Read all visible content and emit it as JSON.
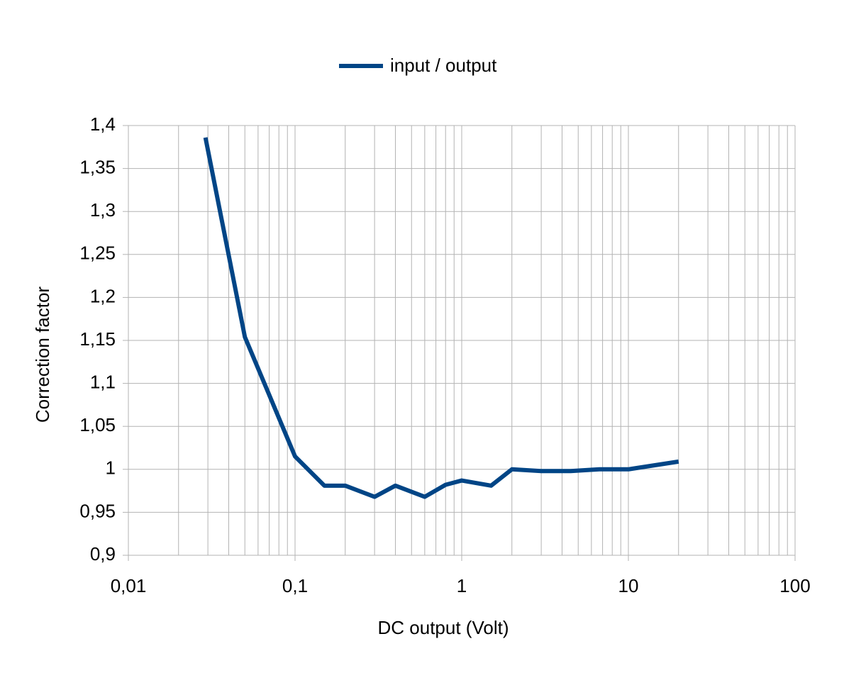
{
  "chart_data": {
    "type": "line",
    "x_label": "DC output (Volt)",
    "y_label": "Correction factor",
    "xscale": "log",
    "grid": true,
    "legend": "top",
    "xlim": [
      0.01,
      100
    ],
    "xticks": [
      {
        "value": 0.01,
        "label": "0,01"
      },
      {
        "value": 0.1,
        "label": "0,1"
      },
      1,
      10,
      100
    ],
    "xminorticks": [
      0.02,
      0.03,
      0.04,
      0.05,
      0.06,
      0.07,
      0.08,
      0.09,
      0.2,
      0.3,
      0.4,
      0.5,
      0.6,
      0.7,
      0.8,
      0.9,
      2,
      3,
      4,
      5,
      6,
      7,
      8,
      9,
      20,
      30,
      40,
      50,
      60,
      70,
      80,
      90
    ],
    "ylim": [
      0.9,
      1.4
    ],
    "yticks": [
      {
        "value": 0.9,
        "label": "0,9"
      },
      {
        "value": 0.95,
        "label": "0,95"
      },
      1,
      {
        "value": 1.05,
        "label": "1,05"
      },
      {
        "value": 1.1,
        "label": "1,1"
      },
      {
        "value": 1.15,
        "label": "1,15"
      },
      {
        "value": 1.2,
        "label": "1,2"
      },
      {
        "value": 1.25,
        "label": "1,25"
      },
      {
        "value": 1.3,
        "label": "1,3"
      },
      {
        "value": 1.35,
        "label": "1,35"
      },
      {
        "value": 1.4,
        "label": "1,4"
      }
    ],
    "x": [
      0.029,
      0.05,
      0.1,
      0.15,
      0.2,
      0.3,
      0.4,
      0.6,
      0.8,
      1,
      1.5,
      2,
      3,
      4.5,
      6.7,
      10,
      20
    ],
    "series": [
      {
        "name": "input / output",
        "color": "#004586",
        "values": [
          1.386,
          1.154,
          1.015,
          0.981,
          0.981,
          0.968,
          0.981,
          0.968,
          0.982,
          0.987,
          0.981,
          1.0,
          0.998,
          0.998,
          1.0,
          1.0,
          1.009
        ]
      }
    ]
  }
}
